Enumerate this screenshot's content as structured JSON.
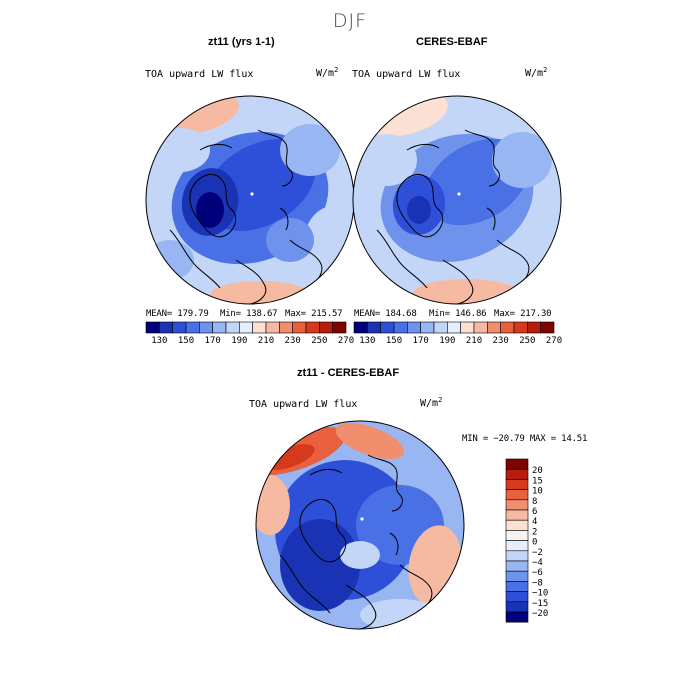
{
  "title": "DJF",
  "panels": {
    "left": {
      "title": "zt11 (yrs 1-1)",
      "variable": "TOA upward LW flux",
      "units": "W/m",
      "units_exp": "2",
      "mean": "MEAN= 179.79",
      "min": "Min= 138.67",
      "max": "Max= 215.57"
    },
    "right": {
      "title": "CERES-EBAF",
      "variable": "TOA upward LW flux",
      "units": "W/m",
      "units_exp": "2",
      "mean": "MEAN= 184.68",
      "min": "Min= 146.86",
      "max": "Max= 217.30"
    },
    "diff": {
      "title": "zt11 - CERES-EBAF",
      "variable": "TOA upward LW flux",
      "units": "W/m",
      "units_exp": "2",
      "minmax": "MIN = −20.79  MAX =  14.51"
    }
  },
  "chart_data": [
    {
      "type": "heatmap",
      "projection": "north-polar-stereographic",
      "title": "zt11 (yrs 1-1)",
      "variable": "TOA upward LW flux",
      "units": "W/m^2",
      "mean": 179.79,
      "min": 138.67,
      "max": 215.57,
      "colorbar": {
        "levels": [
          130,
          140,
          150,
          160,
          170,
          180,
          190,
          200,
          210,
          220,
          230,
          240,
          250,
          260,
          270
        ],
        "tick_labels": [
          "130",
          "150",
          "170",
          "190",
          "210",
          "230",
          "250",
          "270"
        ],
        "colors": [
          "#00007a",
          "#1a33b5",
          "#2e4fd8",
          "#4a70e6",
          "#6f93ec",
          "#98b6f2",
          "#c3d6f7",
          "#e7eefb",
          "#fbe0d3",
          "#f6baa3",
          "#f08e6e",
          "#e8603f",
          "#d63a1c",
          "#b51d0d",
          "#7d0600"
        ]
      }
    },
    {
      "type": "heatmap",
      "projection": "north-polar-stereographic",
      "title": "CERES-EBAF",
      "variable": "TOA upward LW flux",
      "units": "W/m^2",
      "mean": 184.68,
      "min": 146.86,
      "max": 217.3,
      "colorbar": {
        "levels": [
          130,
          140,
          150,
          160,
          170,
          180,
          190,
          200,
          210,
          220,
          230,
          240,
          250,
          260,
          270
        ],
        "tick_labels": [
          "130",
          "150",
          "170",
          "190",
          "210",
          "230",
          "250",
          "270"
        ],
        "colors": [
          "#00007a",
          "#1a33b5",
          "#2e4fd8",
          "#4a70e6",
          "#6f93ec",
          "#98b6f2",
          "#c3d6f7",
          "#e7eefb",
          "#fbe0d3",
          "#f6baa3",
          "#f08e6e",
          "#e8603f",
          "#d63a1c",
          "#b51d0d",
          "#7d0600"
        ]
      }
    },
    {
      "type": "heatmap",
      "projection": "north-polar-stereographic",
      "title": "zt11 - CERES-EBAF",
      "variable": "TOA upward LW flux",
      "units": "W/m^2",
      "min": -20.79,
      "max": 14.51,
      "colorbar": {
        "tick_labels": [
          "20",
          "15",
          "10",
          "8",
          "6",
          "4",
          "2",
          "0",
          "−2",
          "−4",
          "−6",
          "−8",
          "−10",
          "−15",
          "−20"
        ],
        "colors": [
          "#7d0600",
          "#b51d0d",
          "#d63a1c",
          "#e8603f",
          "#f08e6e",
          "#f6baa3",
          "#fbe0d3",
          "#f7f3f0",
          "#e7eefb",
          "#c3d6f7",
          "#98b6f2",
          "#6f93ec",
          "#4a70e6",
          "#2e4fd8",
          "#1a33b5",
          "#00007a"
        ]
      }
    }
  ]
}
